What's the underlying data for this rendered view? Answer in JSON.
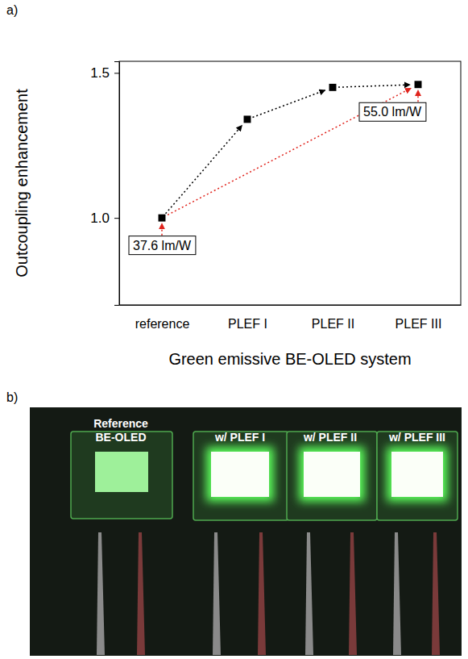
{
  "panels": [
    "a)",
    "b)"
  ],
  "chart_data": {
    "type": "line",
    "categories": [
      "reference",
      "PLEF I",
      "PLEF II",
      "PLEF III"
    ],
    "values": [
      1.0,
      1.34,
      1.45,
      1.46
    ],
    "color": "#000000",
    "marker": "square",
    "line_style": "dotted",
    "x_label": "Green emissive BE-OLED system",
    "y_label": "Outcoupling enhancement",
    "ylim": [
      0.7,
      1.54
    ],
    "yticks": [
      {
        "value": 1,
        "label": "1.0"
      },
      {
        "value": 1.5,
        "label": "1.5"
      }
    ],
    "annotations": [
      "37.6 lm/W",
      "55.0 lm/W"
    ],
    "grid": false
  },
  "photo": {
    "labels": [
      [
        "Reference",
        "BE-OLED"
      ],
      [
        "w/ PLEF I"
      ],
      [
        "w/ PLEF II"
      ],
      [
        "w/ PLEF III"
      ]
    ]
  }
}
